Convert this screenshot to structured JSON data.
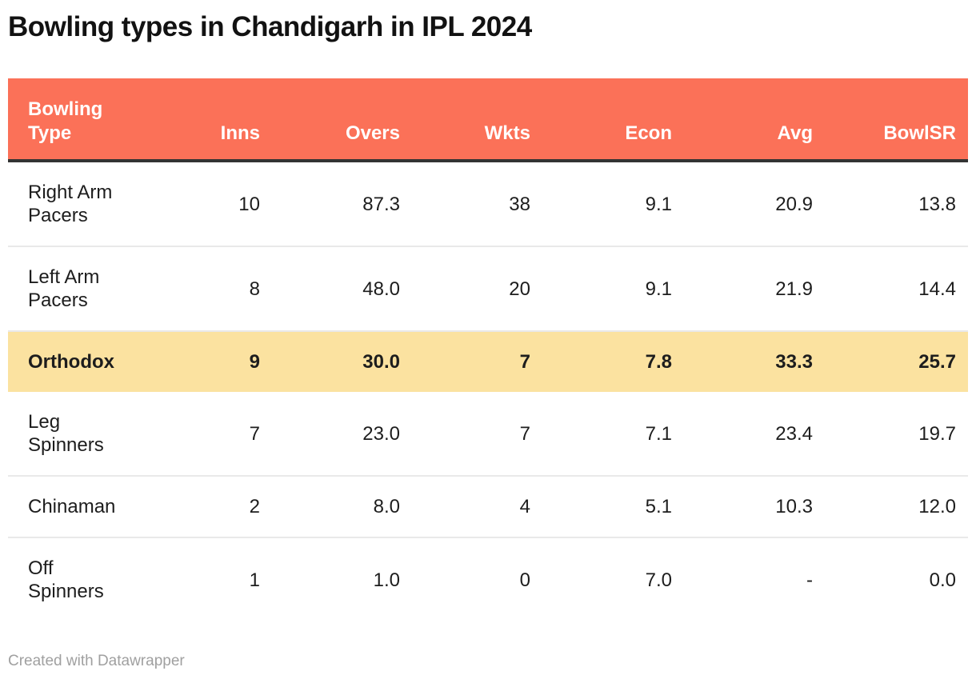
{
  "title": "Bowling types in Chandigarh in IPL 2024",
  "footer": {
    "credit": "Created with Datawrapper"
  },
  "colors": {
    "header_bg": "#fb7158",
    "header_text": "#ffffff",
    "highlight_row_bg": "#fbe2a0",
    "header_bottom_border": "#333333",
    "row_divider": "#e9e9e9",
    "body_text": "#1d1d1d",
    "title_text": "#121212",
    "credit_text": "#a0a0a0"
  },
  "chart_data": {
    "type": "table",
    "title": "Bowling types in Chandigarh in IPL 2024",
    "columns": [
      "Bowling Type",
      "Inns",
      "Overs",
      "Wkts",
      "Econ",
      "Avg",
      "BowlSR"
    ],
    "rows": [
      {
        "label": "Right Arm Pacers",
        "values": [
          "10",
          "87.3",
          "38",
          "9.1",
          "20.9",
          "13.8"
        ],
        "highlight": false
      },
      {
        "label": "Left Arm Pacers",
        "values": [
          "8",
          "48.0",
          "20",
          "9.1",
          "21.9",
          "14.4"
        ],
        "highlight": false
      },
      {
        "label": "Orthodox",
        "values": [
          "9",
          "30.0",
          "7",
          "7.8",
          "33.3",
          "25.7"
        ],
        "highlight": true
      },
      {
        "label": "Leg Spinners",
        "values": [
          "7",
          "23.0",
          "7",
          "7.1",
          "23.4",
          "19.7"
        ],
        "highlight": false
      },
      {
        "label": "Chinaman",
        "values": [
          "2",
          "8.0",
          "4",
          "5.1",
          "10.3",
          "12.0"
        ],
        "highlight": false
      },
      {
        "label": "Off Spinners",
        "values": [
          "1",
          "1.0",
          "0",
          "7.0",
          "-",
          "0.0"
        ],
        "highlight": false
      }
    ],
    "layout": {
      "first_column_align": "left",
      "numeric_columns_align": "right",
      "highlighted_row_index": 2
    }
  }
}
